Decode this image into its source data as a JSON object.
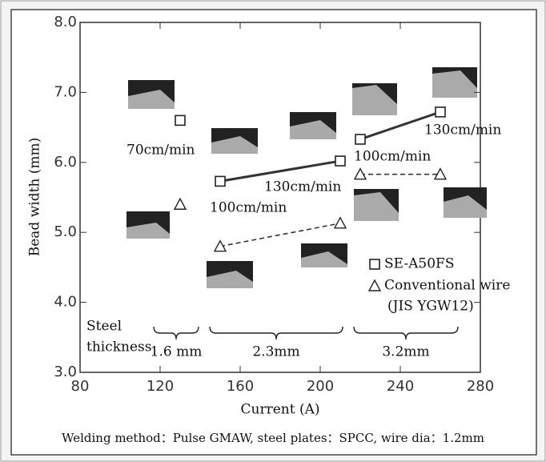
{
  "chart_data": {
    "type": "scatter",
    "x_label": "Current (A)",
    "y_label": "Bead width (mm)",
    "xlim": [
      80,
      280
    ],
    "ylim": [
      3.0,
      8.0
    ],
    "xticks": [
      80,
      120,
      160,
      200,
      240,
      280
    ],
    "yticks": [
      {
        "value": 3,
        "label": "3.0"
      },
      {
        "value": 4,
        "label": "4.0"
      },
      {
        "value": 5,
        "label": "5.0"
      },
      {
        "value": 6,
        "label": "6.0"
      },
      {
        "value": 7,
        "label": "7.0"
      },
      {
        "value": 8,
        "label": "8.0"
      }
    ],
    "series": [
      {
        "name": "SE-A50FS",
        "marker": "square",
        "line": "solid",
        "color": "#333333",
        "segments": [
          {
            "x": [
              130
            ],
            "values": [
              6.6
            ]
          },
          {
            "x": [
              150,
              210
            ],
            "values": [
              5.73,
              6.02
            ]
          },
          {
            "x": [
              220,
              260
            ],
            "values": [
              6.33,
              6.72
            ]
          }
        ]
      },
      {
        "name": "Conventional wire",
        "note": "(JIS YGW12)",
        "marker": "triangle",
        "line": "dashed",
        "color": "#333333",
        "segments": [
          {
            "x": [
              130
            ],
            "values": [
              5.4
            ]
          },
          {
            "x": [
              150,
              210
            ],
            "values": [
              4.8,
              5.13
            ]
          },
          {
            "x": [
              220,
              260
            ],
            "values": [
              5.83,
              5.83
            ]
          }
        ]
      }
    ],
    "annotations": [
      "70cm/min",
      "100cm/min",
      "130cm/min",
      "100cm/min",
      "130cm/min"
    ],
    "thickness_label": [
      "Steel",
      "thickness"
    ],
    "thickness_groups": [
      "1.6 mm",
      "2.3mm",
      "3.2mm"
    ],
    "footnote": "Welding method：Pulse GMAW, steel plates：SPCC, wire dia：1.2mm"
  }
}
